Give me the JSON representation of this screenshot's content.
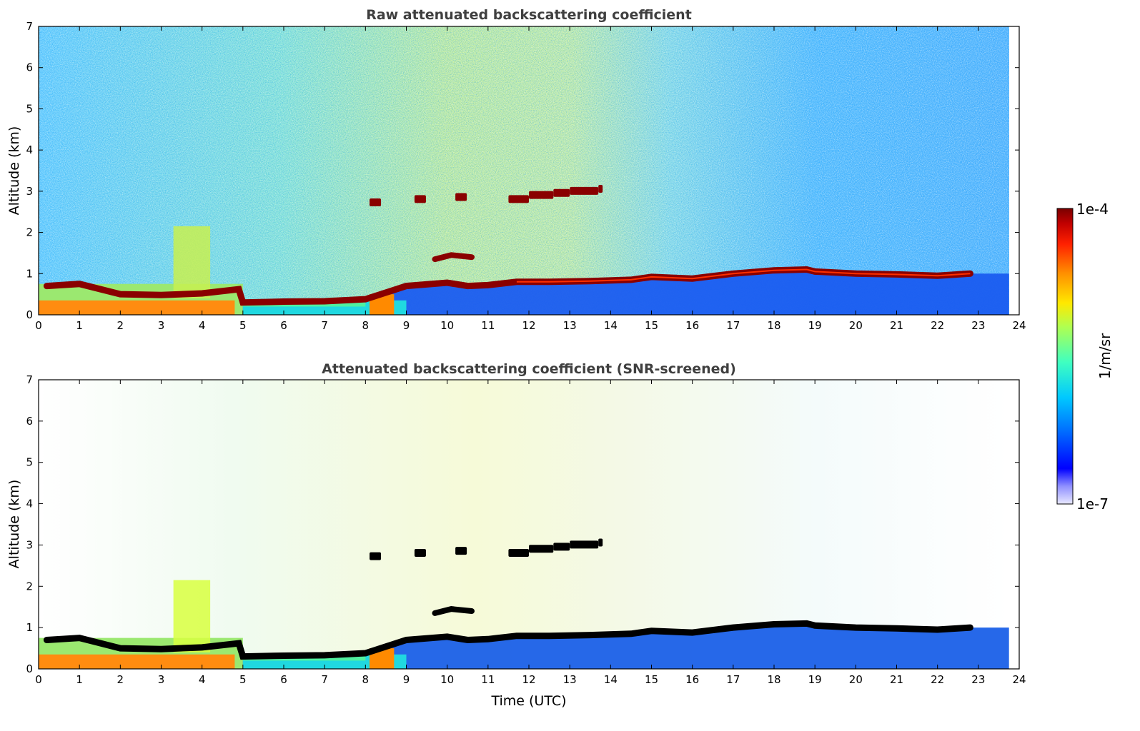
{
  "chart_data": [
    {
      "type": "heatmap",
      "title": "Raw attenuated backscattering coefficient",
      "xlabel": "",
      "ylabel": "Altitude (km)",
      "xlim": [
        0,
        24
      ],
      "ylim": [
        0,
        7
      ],
      "xticks": [
        "0",
        "1",
        "2",
        "3",
        "4",
        "5",
        "6",
        "7",
        "8",
        "9",
        "10",
        "11",
        "12",
        "13",
        "14",
        "15",
        "16",
        "17",
        "18",
        "19",
        "20",
        "21",
        "22",
        "23",
        "24"
      ],
      "yticks": [
        "0",
        "1",
        "2",
        "3",
        "4",
        "5",
        "6",
        "7"
      ],
      "data_end_time": 23.75,
      "boundary_layer": [
        [
          0,
          0.35
        ],
        [
          4.8,
          0.35
        ],
        [
          8.7,
          0.25
        ],
        [
          9,
          0.3
        ],
        [
          14,
          0.3
        ],
        [
          23.75,
          0.3
        ]
      ],
      "cloud_layers": [
        {
          "name": "low cloud",
          "points": [
            [
              0.2,
              0.7
            ],
            [
              1,
              0.75
            ],
            [
              2,
              0.5
            ],
            [
              3,
              0.48
            ],
            [
              4,
              0.52
            ],
            [
              4.9,
              0.62
            ],
            [
              5,
              0.3
            ],
            [
              6,
              0.32
            ],
            [
              7,
              0.33
            ],
            [
              8,
              0.38
            ],
            [
              9,
              0.7
            ],
            [
              10,
              0.78
            ],
            [
              10.5,
              0.7
            ],
            [
              11,
              0.72
            ],
            [
              11.7,
              0.8
            ],
            [
              12.5,
              0.8
            ],
            [
              13.5,
              0.82
            ],
            [
              14.5,
              0.85
            ],
            [
              15,
              0.92
            ],
            [
              16,
              0.88
            ],
            [
              17,
              1.0
            ],
            [
              18,
              1.08
            ],
            [
              18.8,
              1.1
            ],
            [
              19,
              1.05
            ],
            [
              20,
              1.0
            ],
            [
              21,
              0.98
            ],
            [
              22,
              0.95
            ],
            [
              22.8,
              1.0
            ]
          ]
        },
        {
          "name": "mid cloud",
          "points": [
            [
              8.1,
              2.72
            ],
            [
              8.7,
              2.78
            ],
            [
              9.2,
              2.8
            ],
            [
              9.7,
              2.8
            ],
            [
              10.2,
              2.85
            ],
            [
              11.5,
              2.8
            ],
            [
              12,
              2.9
            ],
            [
              12.6,
              2.95
            ],
            [
              13,
              3.0
            ],
            [
              13.7,
              3.05
            ]
          ]
        },
        {
          "name": "small cloud",
          "points": [
            [
              9.7,
              1.35
            ],
            [
              10.1,
              1.45
            ],
            [
              10.6,
              1.4
            ]
          ]
        }
      ],
      "aerosol_plume": {
        "time_range": [
          3.3,
          4.2
        ],
        "top_km": 2.15
      }
    },
    {
      "type": "heatmap",
      "title": "Attenuated backscattering coefficient (SNR-screened)",
      "xlabel": "Time (UTC)",
      "ylabel": "Altitude (km)",
      "xlim": [
        0,
        24
      ],
      "ylim": [
        0,
        7
      ],
      "xticks": [
        "0",
        "1",
        "2",
        "3",
        "4",
        "5",
        "6",
        "7",
        "8",
        "9",
        "10",
        "11",
        "12",
        "13",
        "14",
        "15",
        "16",
        "17",
        "18",
        "19",
        "20",
        "21",
        "22",
        "23",
        "24"
      ],
      "yticks": [
        "0",
        "1",
        "2",
        "3",
        "4",
        "5",
        "6",
        "7"
      ],
      "data_end_time": 23.75,
      "cloud_color": "#000000"
    }
  ],
  "colorbar": {
    "label": "1/m/sr",
    "max_label": "1e-4",
    "min_label": "1e-7",
    "scale": "log",
    "colors": [
      "#e8e8ff",
      "#b8b8ff",
      "#8080ff",
      "#0000ff",
      "#0060ff",
      "#00a0ff",
      "#00e0ff",
      "#40ffc0",
      "#90ff70",
      "#d8ff20",
      "#ffe000",
      "#ff9000",
      "#ff3000",
      "#d00000",
      "#800000"
    ]
  }
}
